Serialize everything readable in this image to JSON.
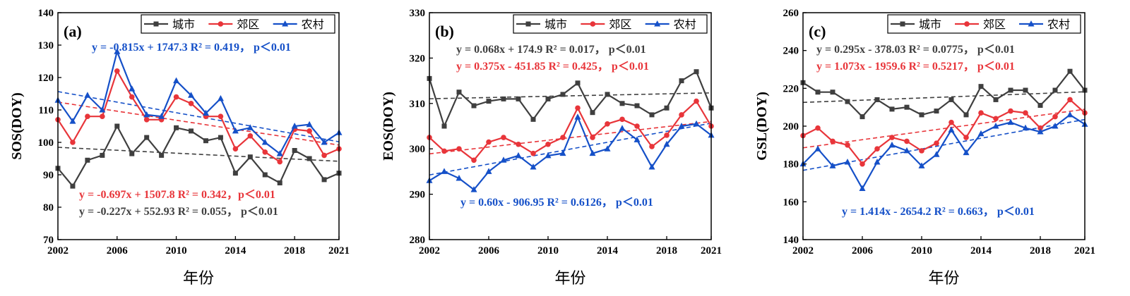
{
  "chart_data": [
    {
      "type": "line",
      "panel_label": "(a)",
      "xlabel": "年份",
      "ylabel": "SOS(DOY)",
      "xlim": [
        2002,
        2021
      ],
      "ylim": [
        70,
        140
      ],
      "xticks": [
        2002,
        2006,
        2010,
        2014,
        2018,
        2021
      ],
      "yticks": [
        70,
        80,
        90,
        100,
        110,
        120,
        130,
        140
      ],
      "x": [
        2002,
        2003,
        2004,
        2005,
        2006,
        2007,
        2008,
        2009,
        2010,
        2011,
        2012,
        2013,
        2014,
        2015,
        2016,
        2017,
        2018,
        2019,
        2020,
        2021
      ],
      "series": [
        {
          "name": "城市",
          "color": "#3f3f3f",
          "marker": "square",
          "values": [
            92,
            86.5,
            94.5,
            96,
            105,
            96.5,
            101.5,
            96,
            104.5,
            103.5,
            100.5,
            101.5,
            90.5,
            95.5,
            90,
            87.5,
            97.5,
            95,
            88.5,
            90.5
          ],
          "trend": [
            552.93,
            -0.227
          ],
          "equation": "y = -0.227x + 552.93  R² = 0.055，  p＜0.01"
        },
        {
          "name": "郊区",
          "color": "#e8353a",
          "marker": "circle",
          "values": [
            107,
            100,
            108,
            108,
            122,
            114,
            107,
            107,
            114,
            112,
            108,
            108,
            98,
            102,
            97,
            94,
            104,
            103.5,
            96,
            98
          ],
          "trend": [
            1507.8,
            -0.697
          ],
          "equation": "y = -0.697x + 1507.8  R² = 0.342，p＜0.01"
        },
        {
          "name": "农村",
          "color": "#1550c8",
          "marker": "triangle",
          "values": [
            113,
            106.5,
            114.5,
            110,
            128,
            116.5,
            108.5,
            108,
            119,
            114.5,
            109,
            113.5,
            103.5,
            104.5,
            100,
            96.5,
            105,
            105.5,
            100,
            103
          ],
          "trend": [
            1747.3,
            -0.815
          ],
          "equation": "y = -0.815x + 1747.3  R² = 0.419，  p＜0.01"
        }
      ]
    },
    {
      "type": "line",
      "panel_label": "(b)",
      "xlabel": "年份",
      "ylabel": "EOS(DOY)",
      "xlim": [
        2002,
        2021
      ],
      "ylim": [
        280,
        330
      ],
      "xticks": [
        2002,
        2006,
        2010,
        2014,
        2018,
        2021
      ],
      "yticks": [
        280,
        290,
        300,
        310,
        320,
        330
      ],
      "x": [
        2002,
        2003,
        2004,
        2005,
        2006,
        2007,
        2008,
        2009,
        2010,
        2011,
        2012,
        2013,
        2014,
        2015,
        2016,
        2017,
        2018,
        2019,
        2020,
        2021
      ],
      "series": [
        {
          "name": "城市",
          "color": "#3f3f3f",
          "marker": "square",
          "values": [
            315.5,
            305,
            312.5,
            309.5,
            310.5,
            311,
            311,
            306.5,
            311,
            312,
            314.5,
            308,
            312,
            310,
            309.5,
            307.5,
            309,
            315,
            317,
            309
          ],
          "trend": [
            174.9,
            0.068
          ],
          "equation": "y = 0.068x + 174.9   R² = 0.017，  p＜0.01"
        },
        {
          "name": "郊区",
          "color": "#e8353a",
          "marker": "circle",
          "values": [
            302.5,
            299.5,
            300,
            297.5,
            301.5,
            302.5,
            301,
            299,
            301,
            302.5,
            309,
            302.5,
            305.5,
            306.5,
            305,
            300.5,
            303,
            307.5,
            310.5,
            305
          ],
          "trend": [
            -451.85,
            0.375
          ],
          "equation": "y = 0.375x - 451.85  R² = 0.425，  p＜0.01"
        },
        {
          "name": "农村",
          "color": "#1550c8",
          "marker": "triangle",
          "values": [
            293,
            295,
            293.5,
            291,
            295,
            297.5,
            298.5,
            296,
            298.5,
            299,
            307,
            299,
            300,
            304.5,
            302,
            296,
            301,
            305,
            305.5,
            303
          ],
          "trend": [
            -906.95,
            0.6
          ],
          "equation": "y = 0.60x - 906.95     R² = 0.6126，  p＜0.01"
        }
      ]
    },
    {
      "type": "line",
      "panel_label": "(c)",
      "xlabel": "年份",
      "ylabel": "GSL(DOY)",
      "xlim": [
        2002,
        2021
      ],
      "ylim": [
        140,
        260
      ],
      "xticks": [
        2002,
        2006,
        2010,
        2014,
        2018,
        2021
      ],
      "yticks": [
        140,
        160,
        180,
        200,
        220,
        240,
        260
      ],
      "x": [
        2002,
        2003,
        2004,
        2005,
        2006,
        2007,
        2008,
        2009,
        2010,
        2011,
        2012,
        2013,
        2014,
        2015,
        2016,
        2017,
        2018,
        2019,
        2020,
        2021
      ],
      "series": [
        {
          "name": "城市",
          "color": "#3f3f3f",
          "marker": "square",
          "values": [
            223,
            218,
            218,
            213,
            205,
            214,
            209,
            210,
            206,
            208,
            214,
            206,
            221,
            214,
            219,
            219,
            211,
            219,
            229,
            219
          ],
          "trend": [
            -378.03,
            0.295
          ],
          "equation": "y = 0.295x - 378.03  R² = 0.0775，  p＜0.01"
        },
        {
          "name": "郊区",
          "color": "#e8353a",
          "marker": "circle",
          "values": [
            195,
            199,
            192,
            190,
            180,
            188,
            194,
            192,
            187,
            191,
            202,
            194,
            207,
            204,
            208,
            207,
            199,
            205,
            214,
            207
          ],
          "trend": [
            -1959.6,
            1.073
          ],
          "equation": "y = 1.073x - 1959.6  R² = 0.5217，  p＜0.01"
        },
        {
          "name": "农村",
          "color": "#1550c8",
          "marker": "triangle",
          "values": [
            180,
            188,
            179,
            181,
            167,
            181,
            190,
            187,
            179,
            185,
            198,
            186,
            196,
            200,
            202,
            199,
            197,
            200,
            206,
            201
          ],
          "trend": [
            -2654.2,
            1.414
          ],
          "equation": "y = 1.414x - 2654.2   R² = 0.663，  p＜0.01"
        }
      ]
    }
  ]
}
